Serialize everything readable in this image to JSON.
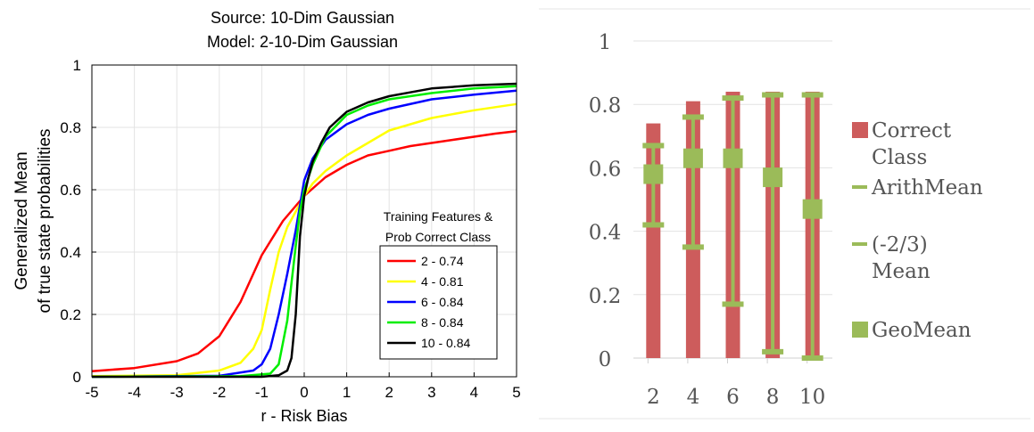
{
  "chart_data": [
    {
      "type": "line",
      "title_lines": [
        "Source:  10-Dim Gaussian",
        "Model: 2-10-Dim  Gaussian"
      ],
      "xlabel": "r - Risk Bias",
      "ylabel_lines": [
        "Generalized Mean",
        "of true state probabilities"
      ],
      "xlim": [
        -5,
        5
      ],
      "ylim": [
        0,
        1
      ],
      "xticks": [
        -5,
        -4,
        -3,
        -2,
        -1,
        0,
        1,
        2,
        3,
        4,
        5
      ],
      "yticks": [
        0,
        0.2,
        0.4,
        0.6,
        0.8,
        1
      ],
      "ytick_labels": [
        "0",
        "0.2",
        "0.4",
        "0.6",
        "0.8",
        "1"
      ],
      "grid": true,
      "legend_title_lines": [
        "Training Features &",
        "Prob Correct Class"
      ],
      "legend_position": "lower-right",
      "series": [
        {
          "name": "2 - 0.74",
          "color": "#ff0000",
          "x": [
            -5,
            -4,
            -3,
            -2.5,
            -2,
            -1.5,
            -1,
            -0.5,
            0,
            0.5,
            1,
            1.5,
            2,
            2.5,
            3,
            3.5,
            4,
            4.5,
            5
          ],
          "y": [
            0.018,
            0.028,
            0.05,
            0.075,
            0.13,
            0.24,
            0.39,
            0.5,
            0.58,
            0.64,
            0.68,
            0.71,
            0.725,
            0.74,
            0.75,
            0.76,
            0.77,
            0.78,
            0.788
          ]
        },
        {
          "name": "4 - 0.81",
          "color": "#ffff00",
          "x": [
            -5,
            -3,
            -2,
            -1.5,
            -1.2,
            -1,
            -0.8,
            -0.6,
            -0.4,
            -0.2,
            0,
            0.2,
            0.5,
            1,
            1.5,
            2,
            3,
            4,
            5
          ],
          "y": [
            0.002,
            0.005,
            0.02,
            0.045,
            0.09,
            0.15,
            0.28,
            0.4,
            0.48,
            0.53,
            0.58,
            0.62,
            0.66,
            0.71,
            0.75,
            0.79,
            0.83,
            0.855,
            0.875
          ]
        },
        {
          "name": "6 - 0.84",
          "color": "#0000ff",
          "x": [
            -5,
            -2,
            -1.2,
            -1,
            -0.8,
            -0.6,
            -0.4,
            -0.2,
            0,
            0.2,
            0.5,
            1,
            1.5,
            2,
            3,
            4,
            5
          ],
          "y": [
            0.0,
            0.003,
            0.02,
            0.04,
            0.09,
            0.2,
            0.33,
            0.47,
            0.63,
            0.7,
            0.76,
            0.81,
            0.84,
            0.86,
            0.89,
            0.905,
            0.918
          ]
        },
        {
          "name": "8 - 0.84",
          "color": "#00ee00",
          "x": [
            -5,
            -1.5,
            -0.8,
            -0.6,
            -0.4,
            -0.3,
            -0.2,
            -0.1,
            0,
            0.2,
            0.5,
            1,
            1.5,
            2,
            3,
            4,
            5
          ],
          "y": [
            0.0,
            0.002,
            0.01,
            0.04,
            0.18,
            0.3,
            0.42,
            0.53,
            0.6,
            0.68,
            0.77,
            0.84,
            0.87,
            0.89,
            0.91,
            0.925,
            0.932
          ]
        },
        {
          "name": "10 - 0.84",
          "color": "#000000",
          "x": [
            -5,
            -1.0,
            -0.6,
            -0.4,
            -0.3,
            -0.2,
            -0.1,
            0,
            0.1,
            0.2,
            0.4,
            0.6,
            1,
            1.5,
            2,
            3,
            4,
            5
          ],
          "y": [
            0.0,
            0.0,
            0.005,
            0.02,
            0.06,
            0.2,
            0.45,
            0.58,
            0.64,
            0.69,
            0.75,
            0.8,
            0.85,
            0.88,
            0.9,
            0.925,
            0.935,
            0.94
          ]
        }
      ]
    },
    {
      "type": "bar",
      "categories": [
        "2",
        "4",
        "6",
        "8",
        "10"
      ],
      "ylim": [
        0,
        1
      ],
      "yticks": [
        0,
        0.2,
        0.4,
        0.6,
        0.8,
        1
      ],
      "ytick_labels": [
        "0",
        "0.2",
        "0.4",
        "0.6",
        "0.8",
        "1"
      ],
      "grid": true,
      "legend_position": "right",
      "colors": {
        "bar": "#cd5c5c",
        "marker": "#9bbb59"
      },
      "series": [
        {
          "name": "Correct Class",
          "name_lines": [
            "Correct",
            "Class"
          ],
          "kind": "bar",
          "values": [
            0.74,
            0.81,
            0.84,
            0.84,
            0.84
          ]
        },
        {
          "name": "ArithMean",
          "name_lines": [
            "ArithMean"
          ],
          "kind": "dash",
          "values": [
            0.67,
            0.76,
            0.82,
            0.83,
            0.83
          ]
        },
        {
          "name": "(-2/3) Mean",
          "name_lines": [
            "(-2/3)",
            "Mean"
          ],
          "kind": "dash",
          "values": [
            0.42,
            0.35,
            0.17,
            0.02,
            0.0
          ]
        },
        {
          "name": "GeoMean",
          "name_lines": [
            "GeoMean"
          ],
          "kind": "square",
          "values": [
            0.58,
            0.63,
            0.63,
            0.57,
            0.47
          ]
        }
      ]
    }
  ]
}
